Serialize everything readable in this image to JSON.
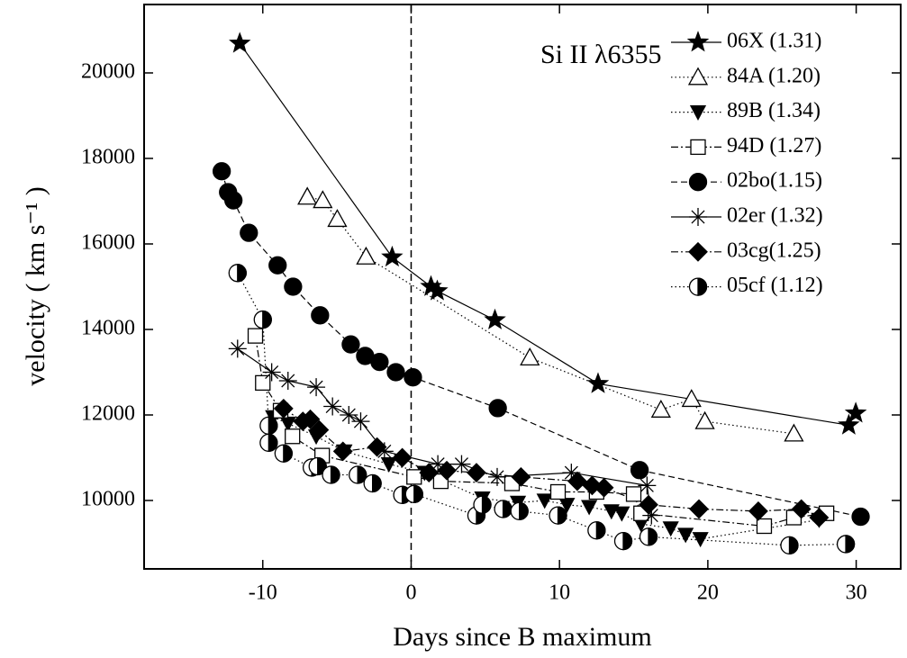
{
  "chart_data": {
    "type": "line",
    "annotation": "Si II λ6355",
    "x_label": "Days since B maximum",
    "y_label": "velocity ( km s⁻¹ )",
    "xlim": [
      -18,
      33
    ],
    "xticks": [
      -10,
      0,
      10,
      20,
      30
    ],
    "ylim": [
      8400,
      21600
    ],
    "yticks": [
      10000,
      12000,
      14000,
      16000,
      18000,
      20000
    ],
    "vline": 0,
    "legend": "upper right",
    "series": [
      {
        "name": "06X (1.31)",
        "marker": "star",
        "line": "solid",
        "color": "#000",
        "x": [
          -11.55,
          -1.28,
          1.34,
          1.76,
          5.65,
          12.6,
          29.5,
          29.97
        ],
        "values": [
          20690,
          15690,
          15000,
          14900,
          14220,
          12730,
          11760,
          12040
        ]
      },
      {
        "name": "84A (1.20)",
        "marker": "triangle-open",
        "line": "dotted",
        "color": "#000",
        "x": [
          -7.0,
          -5.96,
          -4.98,
          -3.04,
          8.0,
          16.84,
          18.9,
          19.8,
          25.8
        ],
        "values": [
          17100,
          17020,
          16580,
          15700,
          13340,
          12120,
          12370,
          11850,
          11560
        ]
      },
      {
        "name": "89B (1.34)",
        "marker": "triangle-down",
        "line": "dotted",
        "color": "#000",
        "x": [
          -9.3,
          -8.3,
          -6.4,
          -4.5,
          -1.5,
          0.9,
          4.8,
          7.2,
          9.0,
          10.5,
          12.0,
          13.5,
          14.2,
          15.5,
          17.5,
          18.5,
          19.5,
          27.5
        ],
        "values": [
          11950,
          11800,
          11500,
          11150,
          10850,
          10650,
          10050,
          9950,
          10000,
          9900,
          9850,
          9750,
          9700,
          9450,
          9350,
          9200,
          9100,
          9550
        ]
      },
      {
        "name": "94D (1.27)",
        "marker": "square-open",
        "line": "dashdot",
        "color": "#000",
        "x": [
          -10.5,
          -10.0,
          -8.8,
          -8.0,
          -6.0,
          0.2,
          2.0,
          6.8,
          9.9,
          12.5,
          15.0,
          15.5,
          23.8,
          25.8,
          28.0
        ],
        "values": [
          13850,
          12750,
          12100,
          11500,
          11050,
          10550,
          10450,
          10400,
          10200,
          10200,
          10150,
          9700,
          9400,
          9600,
          9700
        ]
      },
      {
        "name": "02bo(1.15)",
        "marker": "circle",
        "line": "dashed",
        "color": "#000",
        "x": [
          -12.77,
          -12.34,
          -11.98,
          -10.94,
          -9.0,
          -7.96,
          -6.14,
          -4.07,
          -3.1,
          -2.13,
          -1.03,
          0.12,
          5.84,
          15.4,
          30.3
        ],
        "values": [
          17700,
          17210,
          17020,
          16260,
          15500,
          15000,
          14330,
          13650,
          13380,
          13240,
          13000,
          12880,
          12160,
          10710,
          9620
        ]
      },
      {
        "name": "02er (1.32)",
        "marker": "asterisk",
        "line": "solid",
        "color": "#000",
        "x": [
          -11.7,
          -9.4,
          -8.3,
          -6.4,
          -5.3,
          -4.2,
          -3.4,
          -1.8,
          1.8,
          3.4,
          5.8,
          10.8,
          15.9,
          16.2
        ],
        "values": [
          13550,
          13000,
          12800,
          12650,
          12200,
          12000,
          11850,
          11150,
          10850,
          10850,
          10550,
          10650,
          10350,
          9650
        ]
      },
      {
        "name": "03cg(1.25)",
        "marker": "diamond",
        "line": "dashdot",
        "color": "#000",
        "x": [
          -8.6,
          -7.3,
          -6.8,
          -6.2,
          -4.6,
          -2.3,
          -0.6,
          1.2,
          2.4,
          4.4,
          7.4,
          11.2,
          12.2,
          13.0,
          16.0,
          19.4,
          23.4,
          26.3,
          27.5
        ],
        "values": [
          12150,
          11850,
          11900,
          11650,
          11150,
          11250,
          11000,
          10650,
          10700,
          10650,
          10550,
          10450,
          10350,
          10300,
          9900,
          9800,
          9750,
          9800,
          9600
        ]
      },
      {
        "name": "05cf (1.12)",
        "marker": "half-circle",
        "line": "dotted",
        "color": "#000",
        "x": [
          -11.7,
          -10.0,
          -9.6,
          -9.6,
          -8.6,
          -6.7,
          -6.3,
          -5.4,
          -3.6,
          -2.6,
          -0.6,
          0.2,
          4.4,
          4.8,
          6.2,
          7.3,
          9.9,
          12.5,
          14.3,
          16.0,
          25.5,
          29.3
        ],
        "values": [
          15320,
          14230,
          11750,
          11350,
          11100,
          10770,
          10800,
          10600,
          10600,
          10400,
          10130,
          10150,
          9650,
          9900,
          9800,
          9750,
          9650,
          9300,
          9050,
          9150,
          8950,
          8980
        ]
      }
    ]
  }
}
